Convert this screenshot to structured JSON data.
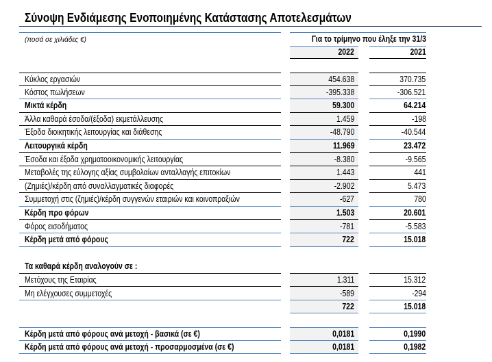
{
  "title": "Σύνοψη Ενδιάμεσης Ενοποιημένης Κατάστασης Αποτελεσμάτων",
  "units_note": "(ποσά σε χιλιάδες €)",
  "period_header": "Για το τρίμηνο που έληξε την 31/3",
  "years": [
    "2022",
    "2021"
  ],
  "rows": [
    {
      "label": "Κύκλος εργασιών",
      "v2022": "454.638",
      "v2021": "370.735"
    },
    {
      "label": "Κόστος πωλήσεων",
      "v2022": "-395.338",
      "v2021": "-306.521"
    },
    {
      "label": "Μικτά κέρδη",
      "v2022": "59.300",
      "v2021": "64.214"
    },
    {
      "label": "Άλλα καθαρά έσοδα/(έξοδα) εκμετάλλευσης",
      "v2022": "1.459",
      "v2021": "-198"
    },
    {
      "label": "Έξοδα διοικητικής λειτουργίας και διάθεσης",
      "v2022": "-48.790",
      "v2021": "-40.544"
    },
    {
      "label": "Λειτουργικά κέρδη",
      "v2022": "11.969",
      "v2021": "23.472"
    },
    {
      "label": "Έσοδα και έξοδα χρηματοοικονομικής λειτουργίας",
      "v2022": "-8.380",
      "v2021": "-9.565"
    },
    {
      "label": "Μεταβολές της εύλογης αξίας συμβολαίων ανταλλαγής επιτοκίων",
      "v2022": "1.443",
      "v2021": "441"
    },
    {
      "label": "(Ζημιές)/κέρδη από συναλλαγματικές διαφορές",
      "v2022": "-2.902",
      "v2021": "5.473"
    },
    {
      "label": "Συμμετοχή στις (ζημιές)/κέρδη συγγενών εταιριών και κοινοπραξιών",
      "v2022": "-627",
      "v2021": "780"
    },
    {
      "label": "Κέρδη προ φόρων",
      "v2022": "1.503",
      "v2021": "20.601"
    },
    {
      "label": "Φόρος εισοδήματος",
      "v2022": "-781",
      "v2021": "-5.583"
    },
    {
      "label": "Κέρδη μετά από φόρους",
      "v2022": "722",
      "v2021": "15.018"
    }
  ],
  "attribution": {
    "heading": "Τα καθαρά κέρδη αναλογούν σε :",
    "rows": [
      {
        "label": "Μετόχους της Εταιρίας",
        "v2022": "1.311",
        "v2021": "15.312"
      },
      {
        "label": "Μη ελέγχουσες συμμετοχές",
        "v2022": "-589",
        "v2021": "-294"
      }
    ],
    "total": {
      "v2022": "722",
      "v2021": "15.018"
    }
  },
  "eps": [
    {
      "label": "Κέρδη μετά από φόρους ανά μετοχή - βασικά (σε  €)",
      "v2022": "0,0181",
      "v2021": "0,1990"
    },
    {
      "label": "Κέρδη μετά από φόρους ανά μετοχή - προσαρμοσμένα (σε  €)",
      "v2022": "0,0181",
      "v2021": "0,1982"
    }
  ]
}
